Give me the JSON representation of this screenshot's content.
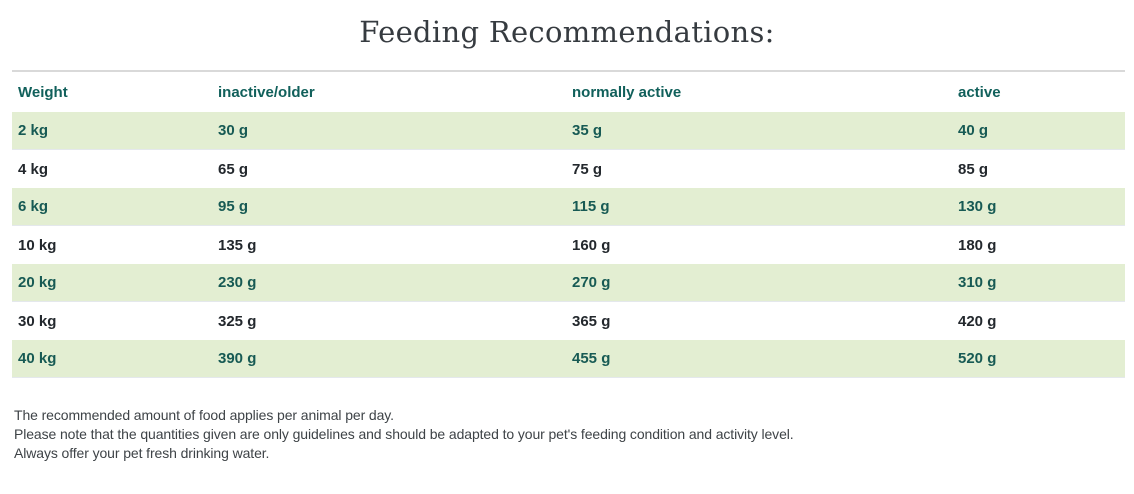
{
  "title": "Feeding Recommendations:",
  "table": {
    "columns": [
      "Weight",
      "inactive/older",
      "normally active",
      "active"
    ],
    "rows": [
      [
        "2 kg",
        "30 g",
        "35 g",
        "40 g"
      ],
      [
        "4 kg",
        "65 g",
        "75 g",
        "85 g"
      ],
      [
        "6 kg",
        "95 g",
        "115 g",
        "130 g"
      ],
      [
        "10 kg",
        "135 g",
        "160 g",
        "180 g"
      ],
      [
        "20 kg",
        "230 g",
        "270 g",
        "310 g"
      ],
      [
        "30 kg",
        "325 g",
        "365 g",
        "420 g"
      ],
      [
        "40 kg",
        "390 g",
        "455 g",
        "520 g"
      ]
    ]
  },
  "notes": [
    "The recommended amount of food applies per animal per day.",
    "Please note that the quantities given are only guidelines and should be adapted to your pet's feeding condition and activity level.",
    "Always offer your pet fresh drinking water."
  ],
  "colors": {
    "green_row_background": "#e3eed2",
    "header_text": "#11605b",
    "green_row_text": "#175a54",
    "white_row_text": "#23282d",
    "title_text": "#363b40",
    "note_text": "#3e4347",
    "table_top_border": "#d9d9d9"
  }
}
